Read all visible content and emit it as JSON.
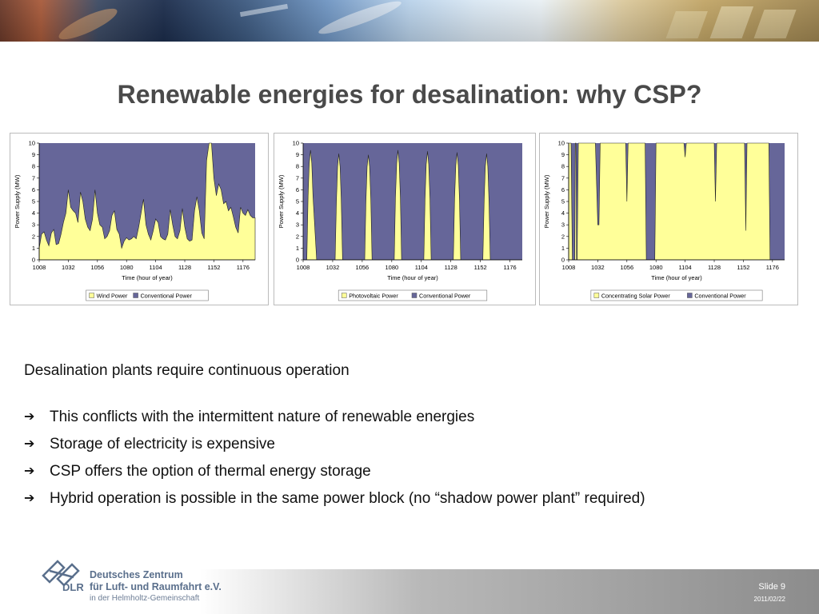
{
  "slide": {
    "title": "Renewable energies for desalination: why CSP?",
    "intro": "Desalination plants require continuous operation",
    "bullets": [
      "This conflicts with the intermittent nature of renewable energies",
      "Storage of electricity is expensive",
      "CSP offers the option of thermal energy storage",
      "Hybrid operation is possible in the same power block (no “shadow power plant” required)"
    ],
    "footer": {
      "org_line1": "Deutsches Zentrum",
      "org_line2": "für Luft- und Raumfahrt e.V.",
      "org_line3": "in der Helmholtz-Gemeinschaft",
      "logo_text": "DLR",
      "slide_number": "Slide 9",
      "date": "2011/02/22"
    }
  },
  "colors": {
    "renewable": "#ffff99",
    "conventional": "#666699",
    "title": "#4a4a4a"
  },
  "chart_data": [
    {
      "type": "area",
      "ylabel": "Power Supply (MW)",
      "xlabel": "Time (hour of year)",
      "xlim": [
        1008,
        1186
      ],
      "ylim": [
        0,
        10
      ],
      "xticks": [
        1008,
        1032,
        1056,
        1080,
        1104,
        1128,
        1152,
        1176
      ],
      "yticks": [
        0,
        1,
        2,
        3,
        4,
        5,
        6,
        7,
        8,
        9,
        10
      ],
      "series": [
        {
          "name": "Wind Power",
          "role": "renewable",
          "x": [
            1008,
            1010,
            1012,
            1014,
            1016,
            1018,
            1020,
            1022,
            1024,
            1026,
            1028,
            1030,
            1032,
            1034,
            1036,
            1038,
            1040,
            1042,
            1044,
            1046,
            1048,
            1050,
            1052,
            1054,
            1056,
            1058,
            1060,
            1062,
            1064,
            1066,
            1068,
            1070,
            1072,
            1074,
            1076,
            1078,
            1080,
            1082,
            1084,
            1086,
            1088,
            1090,
            1092,
            1094,
            1096,
            1098,
            1100,
            1102,
            1104,
            1106,
            1108,
            1110,
            1112,
            1114,
            1116,
            1118,
            1120,
            1122,
            1124,
            1126,
            1128,
            1130,
            1132,
            1134,
            1136,
            1138,
            1140,
            1142,
            1144,
            1146,
            1148,
            1150,
            1152,
            1154,
            1156,
            1158,
            1160,
            1162,
            1164,
            1166,
            1168,
            1170,
            1172,
            1174,
            1176,
            1178,
            1180,
            1182,
            1184,
            1186
          ],
          "values": [
            1.0,
            2.2,
            2.4,
            1.7,
            1.2,
            2.3,
            2.6,
            1.3,
            1.4,
            2.2,
            3.2,
            4.0,
            6.0,
            4.5,
            4.2,
            4.0,
            3.2,
            5.8,
            5.0,
            3.5,
            2.8,
            2.5,
            3.5,
            6.0,
            4.0,
            3.0,
            2.8,
            1.8,
            2.0,
            2.5,
            3.8,
            4.2,
            2.6,
            2.2,
            1.0,
            1.6,
            1.9,
            1.7,
            1.8,
            2.0,
            1.8,
            2.8,
            4.0,
            5.2,
            3.0,
            2.2,
            1.7,
            2.5,
            3.5,
            3.2,
            2.0,
            1.8,
            1.7,
            2.2,
            4.3,
            3.0,
            2.0,
            1.8,
            2.5,
            4.4,
            2.8,
            1.8,
            1.6,
            1.7,
            4.2,
            5.4,
            4.2,
            2.3,
            1.8,
            8.5,
            10,
            10,
            7.0,
            5.5,
            6.5,
            6.0,
            4.8,
            5.0,
            4.2,
            4.5,
            3.7,
            2.8,
            2.3,
            4.5,
            4.0,
            3.8,
            4.3,
            3.8,
            3.6,
            3.6
          ]
        },
        {
          "name": "Conventional Power",
          "role": "conventional",
          "total": 10
        }
      ]
    },
    {
      "type": "area",
      "ylabel": "Power Supply (MW)",
      "xlabel": "Time (hour of year)",
      "xlim": [
        1008,
        1186
      ],
      "ylim": [
        0,
        10
      ],
      "xticks": [
        1008,
        1032,
        1056,
        1080,
        1104,
        1128,
        1152,
        1176
      ],
      "yticks": [
        0,
        1,
        2,
        3,
        4,
        5,
        6,
        7,
        8,
        9,
        10
      ],
      "series": [
        {
          "name": "Photovoltaic Power",
          "role": "renewable",
          "x": [
            1008,
            1011,
            1012,
            1013,
            1014,
            1015,
            1016,
            1019,
            1034,
            1035,
            1036,
            1037,
            1038,
            1039,
            1040,
            1043,
            1058,
            1059,
            1060,
            1061,
            1062,
            1063,
            1064,
            1067,
            1082,
            1083,
            1084,
            1085,
            1086,
            1087,
            1088,
            1091,
            1106,
            1107,
            1108,
            1109,
            1110,
            1111,
            1112,
            1115,
            1130,
            1131,
            1132,
            1133,
            1134,
            1135,
            1136,
            1139,
            1154,
            1155,
            1156,
            1157,
            1158,
            1159,
            1160,
            1163,
            1186
          ],
          "values": [
            0,
            0,
            5.5,
            8.3,
            9.4,
            8.3,
            5.5,
            0,
            0,
            5.0,
            8.0,
            9.1,
            8.0,
            5.0,
            0,
            0,
            0,
            5.0,
            8.0,
            9.0,
            8.0,
            5.0,
            0,
            0,
            0,
            5.3,
            8.3,
            9.4,
            8.3,
            5.3,
            0,
            0,
            0,
            5.2,
            8.2,
            9.3,
            8.2,
            5.2,
            0,
            0,
            0,
            5.1,
            8.1,
            9.2,
            8.1,
            5.1,
            0,
            0,
            0,
            5.0,
            8.0,
            9.1,
            8.0,
            5.0,
            0,
            0,
            0
          ]
        },
        {
          "name": "Conventional Power",
          "role": "conventional",
          "total": 10
        }
      ]
    },
    {
      "type": "area",
      "ylabel": "Power Supply (MW)",
      "xlabel": "Time (hour of year)",
      "xlim": [
        1008,
        1186
      ],
      "ylim": [
        0,
        10
      ],
      "xticks": [
        1008,
        1032,
        1056,
        1080,
        1104,
        1128,
        1152,
        1176
      ],
      "yticks": [
        0,
        1,
        2,
        3,
        4,
        5,
        6,
        7,
        8,
        9,
        10
      ],
      "series": [
        {
          "name": "Concentrating Solar Power",
          "role": "renewable",
          "x": [
            1008,
            1009,
            1010,
            1011,
            1012,
            1013,
            1013.5,
            1014,
            1014.5,
            1015,
            1016,
            1017,
            1030,
            1032,
            1033,
            1034,
            1047,
            1048,
            1055,
            1056,
            1057,
            1064,
            1067,
            1071,
            1072,
            1079,
            1080,
            1083,
            1084,
            1103,
            1104,
            1105,
            1119,
            1120,
            1124,
            1128,
            1129,
            1130,
            1143,
            1144,
            1145,
            1153,
            1154,
            1155,
            1171,
            1173,
            1174,
            1175,
            1186
          ],
          "values": [
            10,
            10,
            10,
            0,
            0,
            0,
            10,
            10,
            0,
            0,
            10,
            10,
            10,
            3,
            3,
            10,
            10,
            10,
            10,
            5,
            10,
            10,
            10,
            10,
            0,
            0,
            10,
            10,
            10,
            10,
            8.8,
            10,
            10,
            10,
            10,
            10,
            5,
            10,
            10,
            10,
            10,
            10,
            2.5,
            10,
            10,
            10,
            0,
            0,
            0
          ]
        },
        {
          "name": "Conventional Power",
          "role": "conventional",
          "total": 10
        }
      ]
    }
  ]
}
